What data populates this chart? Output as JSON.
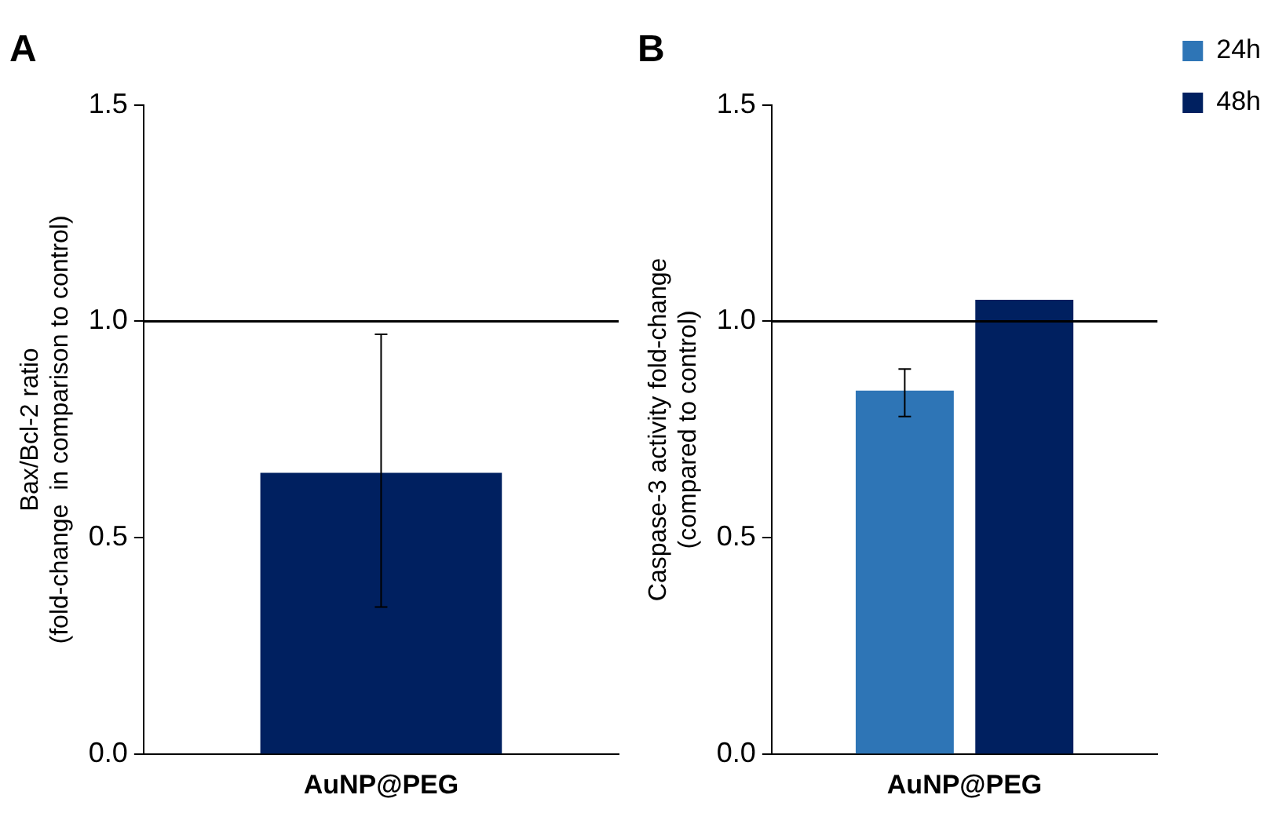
{
  "chart_data": [
    {
      "type": "bar",
      "title": "A",
      "ylabel": "Bax/Bcl-2 ratio\n(fold-change  in comparison to control)",
      "categories": [
        "AuNP@PEG"
      ],
      "series": [
        {
          "color": "#002060",
          "values": [
            0.65
          ],
          "errors": [
            [
              0.34,
              0.97
            ]
          ]
        }
      ],
      "ylim": [
        0,
        1.5
      ],
      "yticks": [
        {
          "value": 0,
          "label": "0.0"
        },
        {
          "value": 0.5,
          "label": "0.5"
        },
        {
          "value": 1,
          "label": "1.0"
        },
        {
          "value": 1.5,
          "label": "1.5"
        }
      ],
      "ref_lines": [
        {
          "axis": "y",
          "value": 1,
          "color": "#000000"
        }
      ],
      "grid": false,
      "legend": false
    },
    {
      "type": "bar",
      "title": "B",
      "ylabel": "Caspase-3 activity fold-change\n(compared to control)",
      "categories": [
        "AuNP@PEG"
      ],
      "series": [
        {
          "name": "24h",
          "color": "#2e75b6",
          "values": [
            0.84
          ],
          "errors": [
            [
              0.78,
              0.89
            ]
          ]
        },
        {
          "name": "48h",
          "color": "#002060",
          "values": [
            1.05
          ]
        }
      ],
      "ylim": [
        0,
        1.5
      ],
      "yticks": [
        {
          "value": 0,
          "label": "0.0"
        },
        {
          "value": 0.5,
          "label": "0.5"
        },
        {
          "value": 1,
          "label": "1.0"
        },
        {
          "value": 1.5,
          "label": "1.5"
        }
      ],
      "ref_lines": [
        {
          "axis": "y",
          "value": 1,
          "color": "#000000"
        }
      ],
      "grid": false,
      "legend": "top right"
    }
  ]
}
